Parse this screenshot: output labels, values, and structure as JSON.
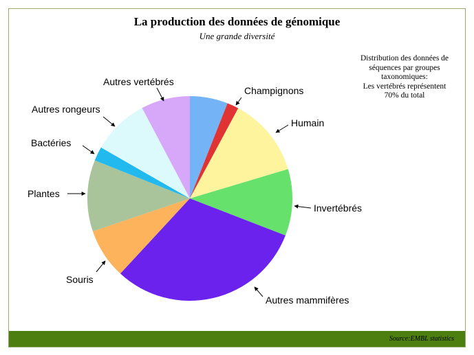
{
  "title": "La production des données de génomique",
  "subtitle": "Une grande diversité",
  "note_lines": [
    "Distribution des données de",
    "séquences par groupes",
    "taxonomiques:",
    "Les vertébrés représentent",
    "70% du total"
  ],
  "source": "Source:EMBL statistics",
  "colors": {
    "footer": "#4d7e10",
    "frame": "#9aa86a"
  },
  "chart_data": {
    "type": "pie",
    "start_angle_deg": 0,
    "direction": "clockwise",
    "slices": [
      {
        "label": "",
        "value": 6.2,
        "color": "#74b4f6"
      },
      {
        "label": "Champignons",
        "value": 1.9,
        "color": "#e03333"
      },
      {
        "label": "Humain",
        "value": 13.0,
        "color": "#fdf49d"
      },
      {
        "label": "Invertébrés",
        "value": 10.9,
        "color": "#66e16c"
      },
      {
        "label": "Autres mammifères",
        "value": 32.1,
        "color": "#6b22ed"
      },
      {
        "label": "Souris",
        "value": 8.2,
        "color": "#fcb35c"
      },
      {
        "label": "Plantes",
        "value": 11.7,
        "color": "#a9c39a"
      },
      {
        "label": "Bactéries",
        "value": 2.3,
        "color": "#21b9ee"
      },
      {
        "label": "Autres rongeurs",
        "value": 9.3,
        "color": "#dcf9fb"
      },
      {
        "label": "Autres vertébrés",
        "value": 8.0,
        "color": "#d7a7f9"
      }
    ]
  }
}
